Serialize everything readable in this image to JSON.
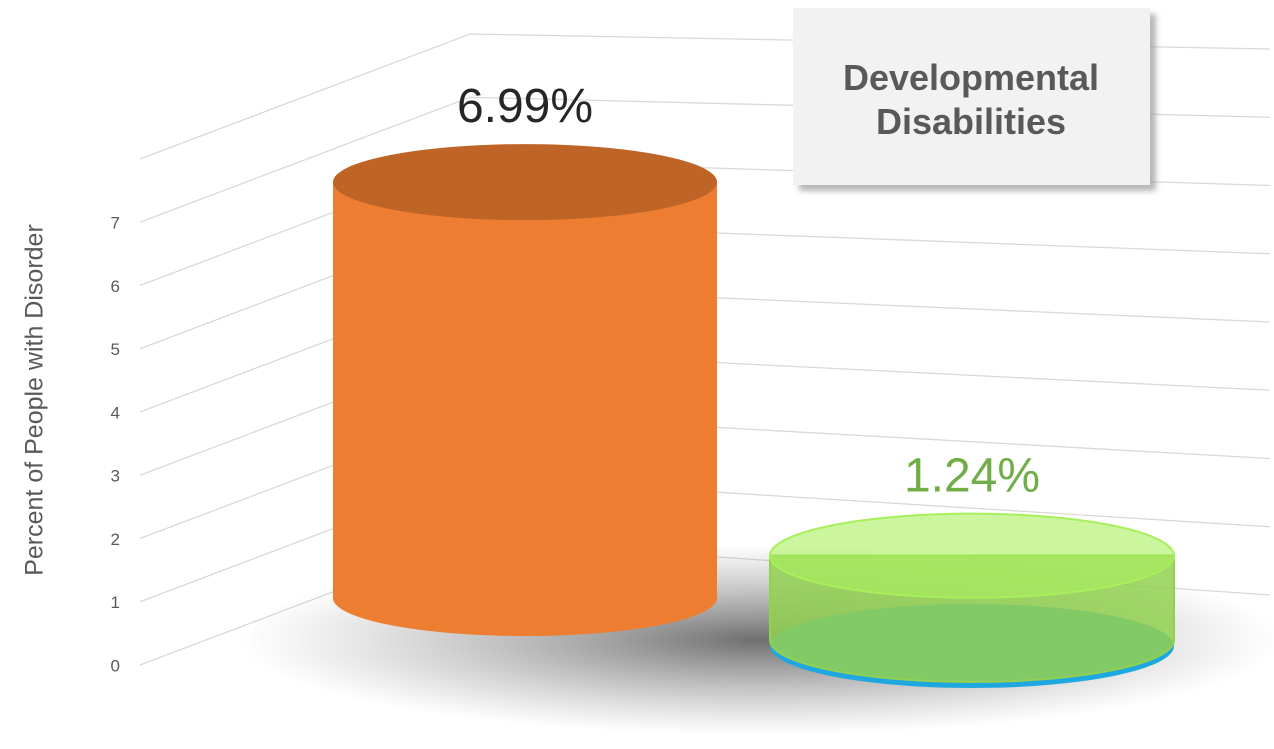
{
  "chart_data": {
    "type": "bar",
    "title": "Developmental Disabilities",
    "y_label": "Percent of People with Disorder",
    "categories": [
      null,
      null
    ],
    "series": [
      {
        "colors": [
          "#ed7d31",
          "#92d050"
        ],
        "label_colors": [
          "#262626",
          "#70ad47"
        ],
        "values": [
          6.99,
          1.24
        ],
        "value_labels": [
          "6.99%",
          "1.24%"
        ]
      }
    ],
    "ylim": [
      0,
      8
    ],
    "yticks": [
      0,
      1,
      2,
      3,
      4,
      5,
      6,
      7
    ],
    "grid": true
  }
}
